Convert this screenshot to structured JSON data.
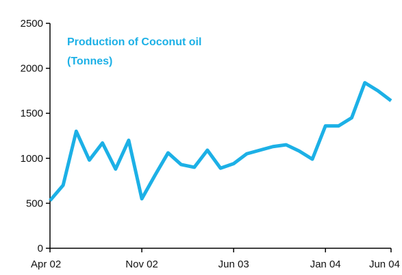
{
  "chart_data": {
    "type": "line",
    "title_lines": [
      "Production of Coconut oil",
      "(Tonnes)"
    ],
    "xlabel": "",
    "ylabel": "",
    "ylim": [
      0,
      2500
    ],
    "yticks": [
      0,
      500,
      1000,
      1500,
      2000,
      2500
    ],
    "xticks": [
      {
        "label": "Apr 02",
        "index": 0
      },
      {
        "label": "Nov 02",
        "index": 7
      },
      {
        "label": "Jun 03",
        "index": 14
      },
      {
        "label": "Jan 04",
        "index": 21
      },
      {
        "label": "Jun 04",
        "index": 26
      }
    ],
    "grid": false,
    "legend": "none",
    "line_color": "#1cb0e6",
    "series": [
      {
        "name": "Production of Coconut oil (Tonnes)",
        "values": [
          530,
          700,
          1300,
          980,
          1170,
          880,
          1200,
          550,
          810,
          1060,
          930,
          900,
          1090,
          890,
          940,
          1050,
          1090,
          1130,
          1150,
          1080,
          990,
          1360,
          1360,
          1450,
          1840,
          1750,
          1640
        ]
      }
    ]
  }
}
